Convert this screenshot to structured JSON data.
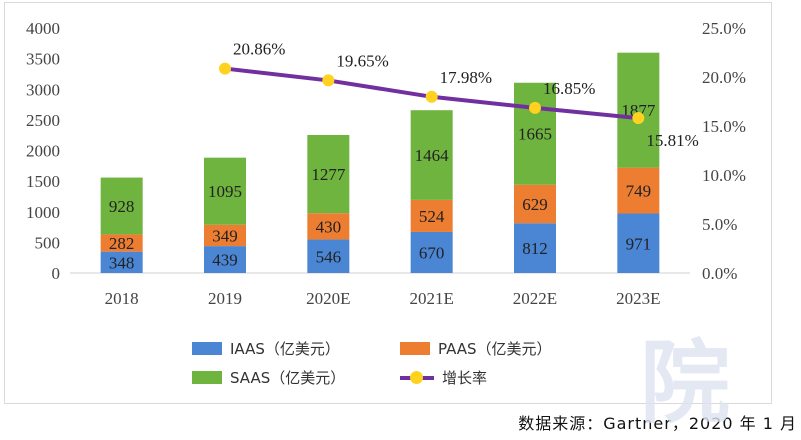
{
  "chart_data": {
    "type": "bar",
    "stacked": true,
    "categories": [
      "2018",
      "2019",
      "2020E",
      "2021E",
      "2022E",
      "2023E"
    ],
    "series": [
      {
        "name": "IAAS（亿美元）",
        "values": [
          348,
          439,
          546,
          670,
          812,
          971
        ],
        "color": "#4a86d4"
      },
      {
        "name": "PAAS（亿美元）",
        "values": [
          282,
          349,
          430,
          524,
          629,
          749
        ],
        "color": "#ed7d31"
      },
      {
        "name": "SAAS（亿美元）",
        "values": [
          928,
          1095,
          1277,
          1464,
          1665,
          1877
        ],
        "color": "#6fb43f"
      }
    ],
    "line_series": {
      "name": "增长率",
      "axis": "right",
      "x": [
        "2019",
        "2020E",
        "2021E",
        "2022E",
        "2023E"
      ],
      "values": [
        20.86,
        19.65,
        17.98,
        16.85,
        15.81
      ],
      "labels": [
        "20.86%",
        "19.65%",
        "17.98%",
        "16.85%",
        "15.81%"
      ],
      "line_color": "#7030a0",
      "marker_color": "#ffd21f"
    },
    "ylim": [
      0,
      4000
    ],
    "yticks": [
      "0",
      "500",
      "1000",
      "1500",
      "2000",
      "2500",
      "3000",
      "3500",
      "4000"
    ],
    "y2lim": [
      0,
      25
    ],
    "y2ticks": [
      "0.0%",
      "5.0%",
      "10.0%",
      "15.0%",
      "20.0%",
      "25.0%"
    ],
    "grid": false,
    "legend_position": "bottom"
  },
  "source_text": "数据来源：Gartner，2020 年 1 月",
  "watermark_text": "院"
}
